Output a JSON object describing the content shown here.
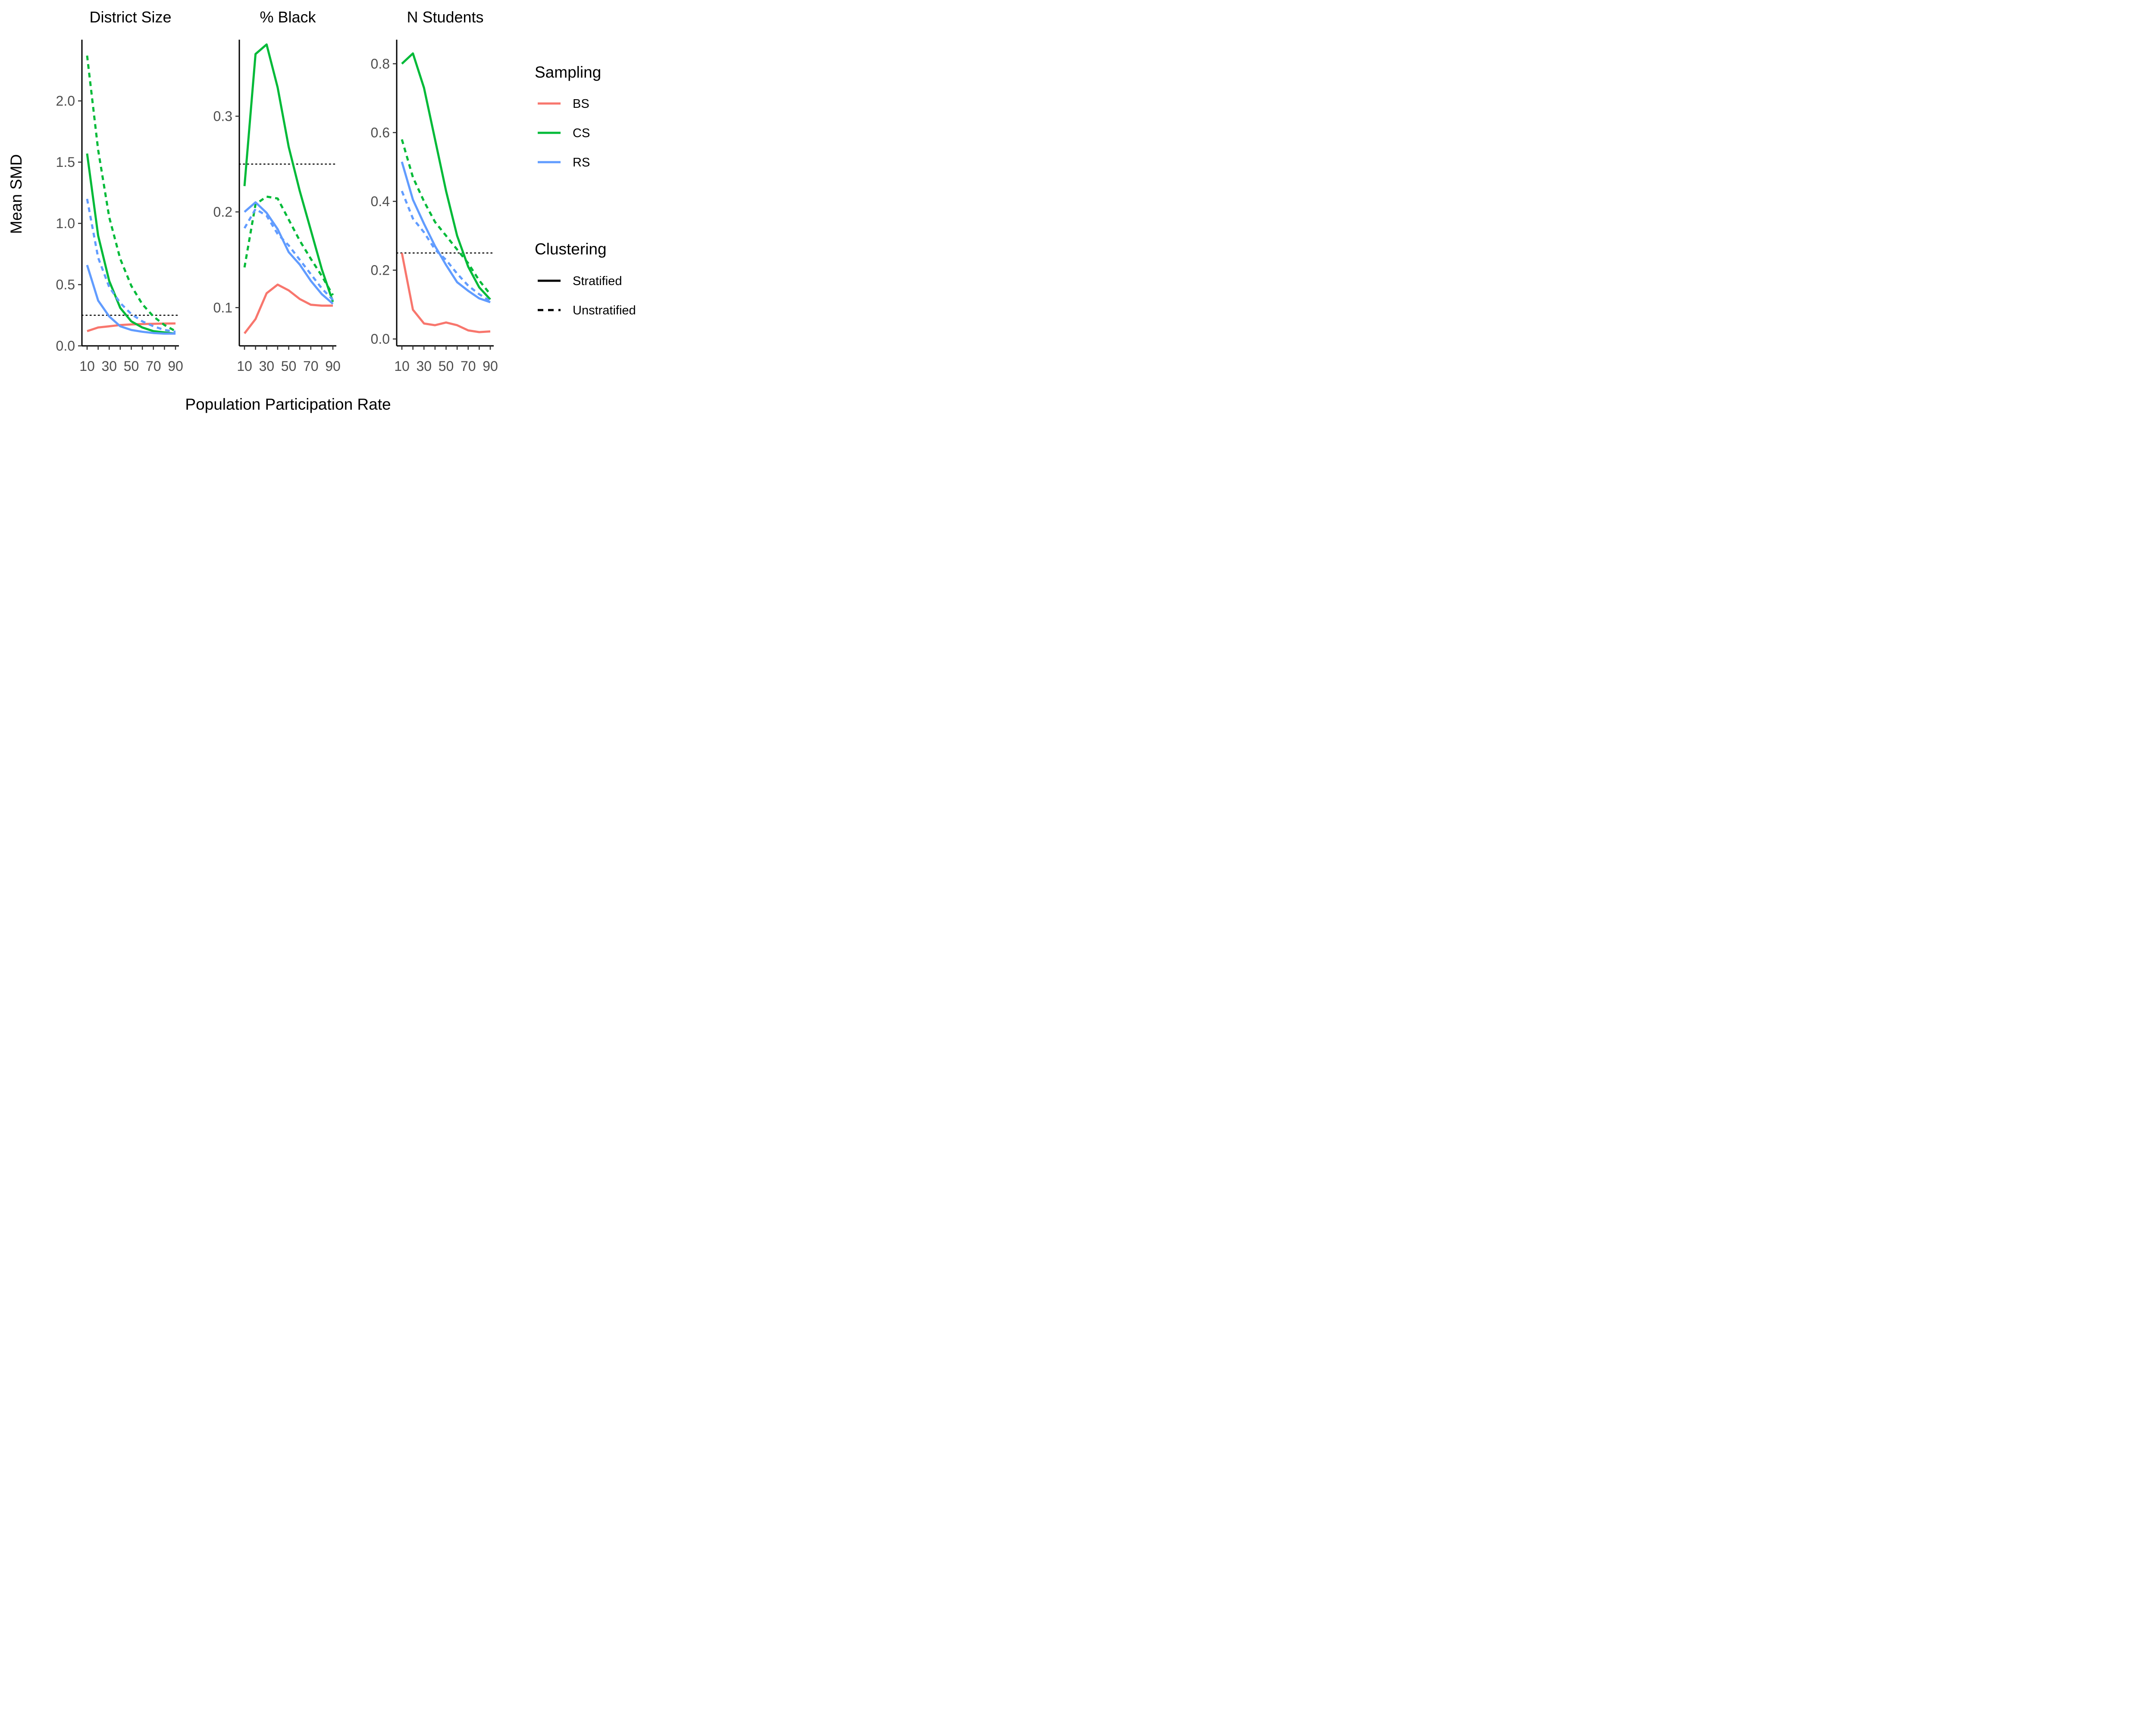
{
  "chart_data": {
    "type": "line",
    "xlabel": "Population Participation Rate",
    "ylabel": "Mean SMD",
    "x": [
      10,
      20,
      30,
      40,
      50,
      60,
      70,
      80,
      90
    ],
    "xticks": [
      10,
      30,
      50,
      70,
      90
    ],
    "reference_line": 0.25,
    "legend": {
      "placement": "right",
      "sampling_title": "Sampling",
      "clustering_title": "Clustering",
      "sampling": [
        {
          "label": "BS",
          "color": "#F8766D"
        },
        {
          "label": "CS",
          "color": "#00BA38"
        },
        {
          "label": "RS",
          "color": "#619CFF"
        }
      ],
      "clustering": [
        {
          "label": "Stratified",
          "dash": "solid"
        },
        {
          "label": "Unstratified",
          "dash": "dashed"
        }
      ]
    },
    "panels": [
      {
        "title": "District Size",
        "ylim": [
          0,
          2.5
        ],
        "yticks": [
          "0.0",
          "0.5",
          "1.0",
          "1.5",
          "2.0"
        ],
        "series": [
          {
            "sampling": "BS",
            "clustering": "Stratified",
            "values": [
              0.12,
              0.15,
              0.16,
              0.17,
              0.175,
              0.178,
              0.18,
              0.182,
              0.183
            ]
          },
          {
            "sampling": "CS",
            "clustering": "Stratified",
            "values": [
              1.57,
              0.9,
              0.53,
              0.31,
              0.2,
              0.15,
              0.12,
              0.11,
              0.1
            ]
          },
          {
            "sampling": "CS",
            "clustering": "Unstratified",
            "values": [
              2.37,
              1.6,
              1.05,
              0.71,
              0.49,
              0.34,
              0.24,
              0.17,
              0.12
            ]
          },
          {
            "sampling": "RS",
            "clustering": "Stratified",
            "values": [
              0.66,
              0.37,
              0.24,
              0.16,
              0.13,
              0.115,
              0.105,
              0.1,
              0.1
            ]
          },
          {
            "sampling": "RS",
            "clustering": "Unstratified",
            "values": [
              1.2,
              0.72,
              0.48,
              0.35,
              0.26,
              0.2,
              0.16,
              0.13,
              0.115
            ]
          }
        ]
      },
      {
        "title": "% Black",
        "ylim": [
          0.06,
          0.38
        ],
        "yticks": [
          "0.1",
          "0.2",
          "0.3"
        ],
        "series": [
          {
            "sampling": "BS",
            "clustering": "Stratified",
            "values": [
              0.073,
              0.088,
              0.115,
              0.124,
              0.118,
              0.109,
              0.103,
              0.102,
              0.102
            ]
          },
          {
            "sampling": "CS",
            "clustering": "Stratified",
            "values": [
              0.227,
              0.365,
              0.375,
              0.33,
              0.268,
              0.222,
              0.181,
              0.14,
              0.106
            ]
          },
          {
            "sampling": "CS",
            "clustering": "Unstratified",
            "values": [
              0.142,
              0.208,
              0.216,
              0.214,
              0.192,
              0.17,
              0.151,
              0.133,
              0.113
            ]
          },
          {
            "sampling": "RS",
            "clustering": "Stratified",
            "values": [
              0.2,
              0.21,
              0.199,
              0.182,
              0.158,
              0.145,
              0.128,
              0.114,
              0.104
            ]
          },
          {
            "sampling": "RS",
            "clustering": "Unstratified",
            "values": [
              0.183,
              0.203,
              0.196,
              0.177,
              0.165,
              0.15,
              0.135,
              0.12,
              0.108
            ]
          }
        ]
      },
      {
        "title": "N Students",
        "ylim": [
          -0.02,
          0.87
        ],
        "yticks": [
          "0.0",
          "0.2",
          "0.4",
          "0.6",
          "0.8"
        ],
        "series": [
          {
            "sampling": "BS",
            "clustering": "Stratified",
            "values": [
              0.25,
              0.085,
              0.045,
              0.04,
              0.048,
              0.04,
              0.025,
              0.02,
              0.022
            ]
          },
          {
            "sampling": "CS",
            "clustering": "Stratified",
            "values": [
              0.8,
              0.83,
              0.73,
              0.58,
              0.43,
              0.3,
              0.21,
              0.15,
              0.115
            ]
          },
          {
            "sampling": "CS",
            "clustering": "Unstratified",
            "values": [
              0.58,
              0.47,
              0.4,
              0.34,
              0.3,
              0.26,
              0.22,
              0.17,
              0.13
            ]
          },
          {
            "sampling": "RS",
            "clustering": "Stratified",
            "values": [
              0.515,
              0.405,
              0.335,
              0.27,
              0.215,
              0.165,
              0.14,
              0.118,
              0.107
            ]
          },
          {
            "sampling": "RS",
            "clustering": "Unstratified",
            "values": [
              0.43,
              0.35,
              0.31,
              0.26,
              0.23,
              0.19,
              0.155,
              0.13,
              0.11
            ]
          }
        ]
      }
    ]
  }
}
